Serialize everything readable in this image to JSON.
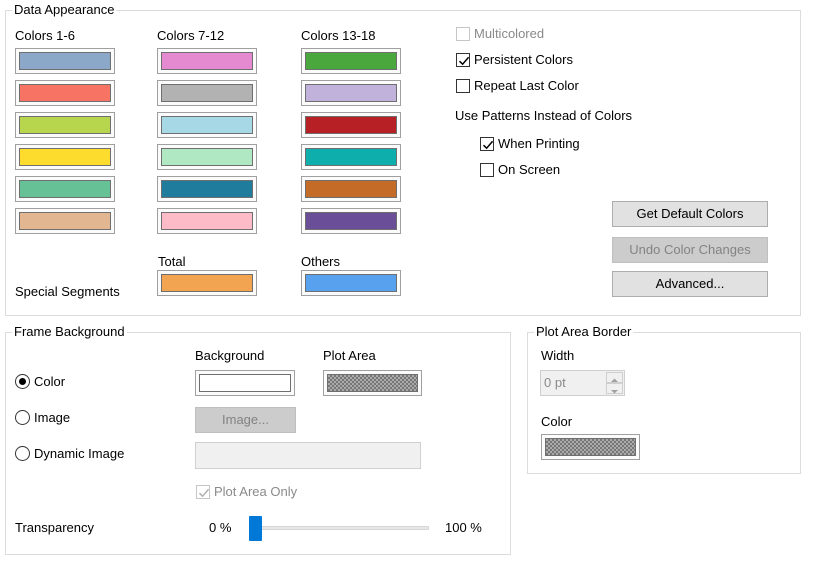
{
  "data_appearance": {
    "title": "Data Appearance",
    "columns": [
      {
        "label": "Colors 1-6",
        "colors": [
          "#8ca8c8",
          "#f77465",
          "#b8d54e",
          "#fedc2e",
          "#66c296",
          "#e3b692"
        ]
      },
      {
        "label": "Colors 7-12",
        "colors": [
          "#e58ad1",
          "#b2b2b2",
          "#a6d8e6",
          "#b0e8c4",
          "#1f7c9c",
          "#fdbbc8"
        ]
      },
      {
        "label": "Colors 13-18",
        "colors": [
          "#4aa73e",
          "#c0b2da",
          "#b72025",
          "#0eaeac",
          "#c46b28",
          "#6a4f98"
        ]
      }
    ],
    "special_segments_label": "Special Segments",
    "total_label": "Total",
    "total_color": "#f3a451",
    "others_label": "Others",
    "others_color": "#57a1ee",
    "multicolored": {
      "label": "Multicolored",
      "checked": false,
      "enabled": false
    },
    "persistent_colors": {
      "label": "Persistent Colors",
      "checked": true
    },
    "repeat_last_color": {
      "label": "Repeat Last Color",
      "checked": false
    },
    "patterns_label": "Use Patterns Instead of Colors",
    "when_printing": {
      "label": "When Printing",
      "checked": true
    },
    "on_screen": {
      "label": "On Screen",
      "checked": false
    },
    "get_default_colors_label": "Get Default Colors",
    "undo_color_changes_label": "Undo Color Changes",
    "advanced_label": "Advanced..."
  },
  "frame_background": {
    "title": "Frame Background",
    "background_header": "Background",
    "plot_area_header": "Plot Area",
    "color_option": {
      "label": "Color",
      "selected": true
    },
    "image_option": {
      "label": "Image",
      "selected": false
    },
    "dynamic_image_option": {
      "label": "Dynamic Image",
      "selected": false
    },
    "image_button_label": "Image...",
    "plot_area_only": {
      "label": "Plot Area Only",
      "checked": true,
      "enabled": false
    },
    "transparency_label": "Transparency",
    "transparency_min": "0 %",
    "transparency_max": "100 %",
    "transparency_value": 0
  },
  "plot_area_border": {
    "title": "Plot Area Border",
    "width_label": "Width",
    "width_value": "0 pt",
    "color_label": "Color"
  },
  "ui_colors": {
    "accent": "#0078d7"
  }
}
